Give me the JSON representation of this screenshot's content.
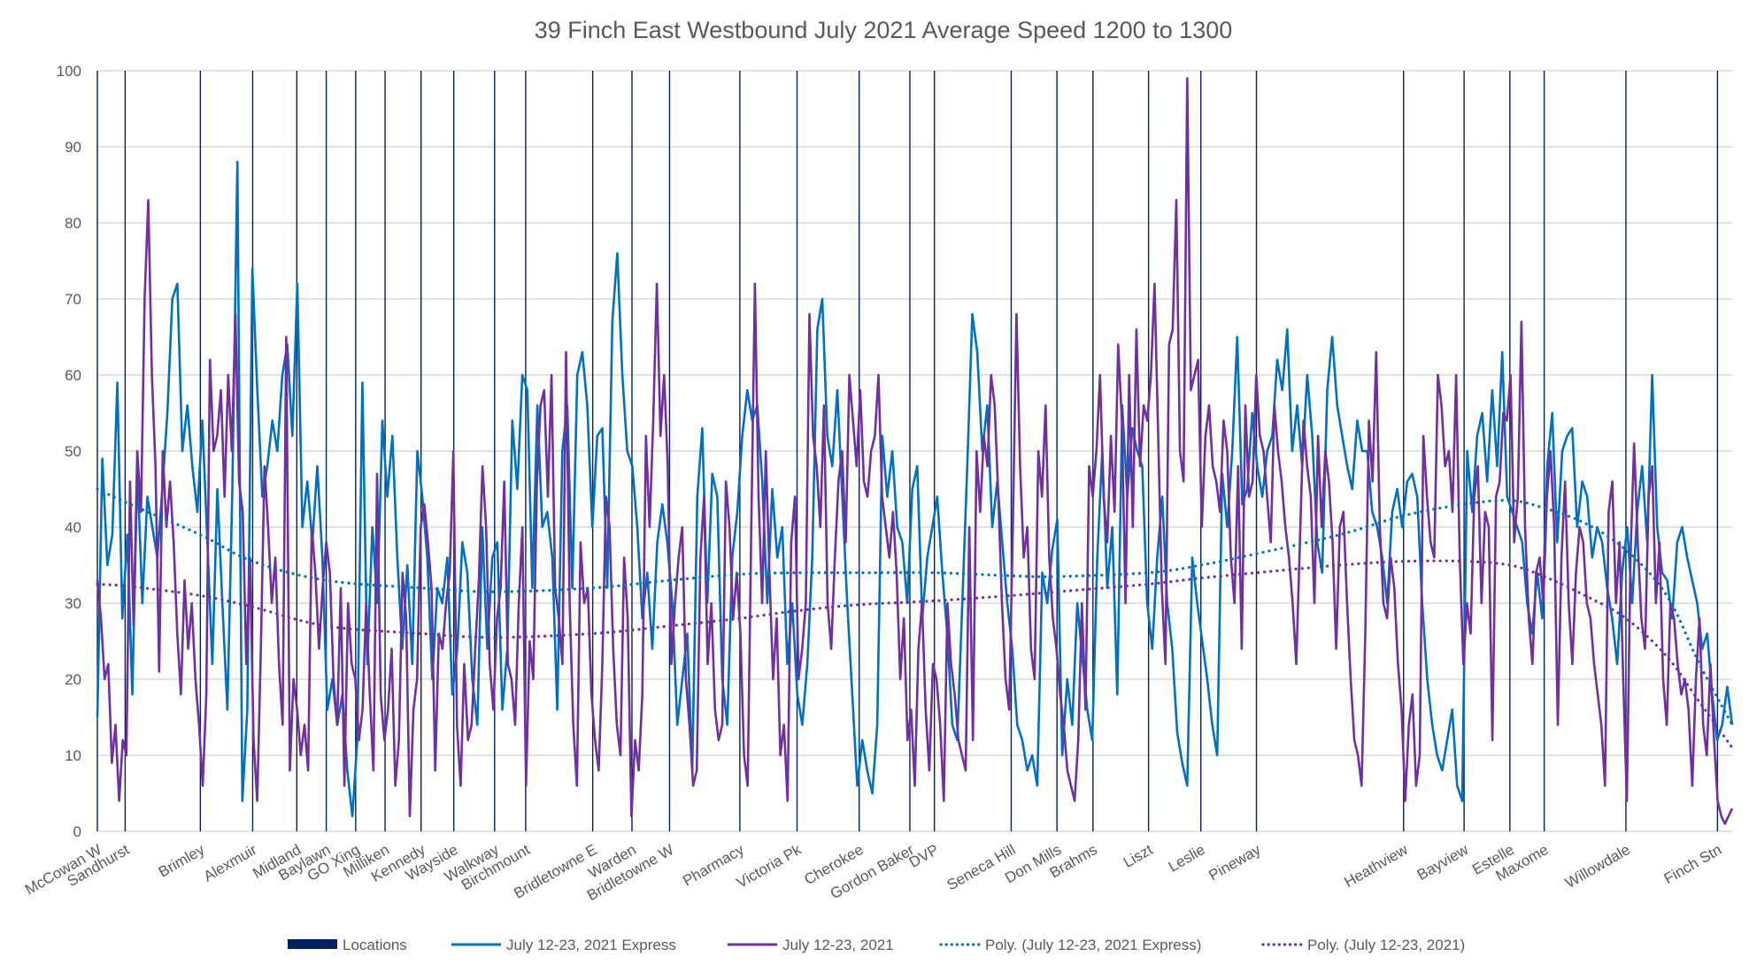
{
  "chart_data": {
    "type": "line",
    "title": "39 Finch East Westbound July 2021 Average Speed 1200 to 1300",
    "xlabel": "",
    "ylabel": "",
    "ylim": [
      0,
      100
    ],
    "xlim": [
      0,
      1000
    ],
    "y_ticks": [
      0,
      10,
      20,
      30,
      40,
      50,
      60,
      70,
      80,
      90,
      100
    ],
    "grid": "horizontal",
    "legend_position": "bottom",
    "locations": [
      {
        "name": "McCowan W",
        "x": 0
      },
      {
        "name": "Sandhurst",
        "x": 17
      },
      {
        "name": "Brimley",
        "x": 63
      },
      {
        "name": "Alexmuir",
        "x": 95
      },
      {
        "name": "Midland",
        "x": 122
      },
      {
        "name": "Baylawn",
        "x": 140
      },
      {
        "name": "GO Xing",
        "x": 158
      },
      {
        "name": "Milliken",
        "x": 176
      },
      {
        "name": "Kennedy",
        "x": 198
      },
      {
        "name": "Wayside",
        "x": 218
      },
      {
        "name": "Walkway",
        "x": 243
      },
      {
        "name": "Birchmount",
        "x": 262
      },
      {
        "name": "Bridletowne E",
        "x": 303
      },
      {
        "name": "Warden",
        "x": 327
      },
      {
        "name": "Bridletowne W",
        "x": 350
      },
      {
        "name": "Pharmacy",
        "x": 393
      },
      {
        "name": "Victoria Pk",
        "x": 428
      },
      {
        "name": "Cherokee",
        "x": 466
      },
      {
        "name": "Gordon Baker",
        "x": 497
      },
      {
        "name": "DVP",
        "x": 512
      },
      {
        "name": "Seneca Hill",
        "x": 559
      },
      {
        "name": "Don Mills",
        "x": 587
      },
      {
        "name": "Brahms",
        "x": 609
      },
      {
        "name": "Liszt",
        "x": 643
      },
      {
        "name": "Leslie",
        "x": 675
      },
      {
        "name": "Pineway",
        "x": 709
      },
      {
        "name": "Heathview",
        "x": 799
      },
      {
        "name": "Bayview",
        "x": 836
      },
      {
        "name": "Estelle",
        "x": 864
      },
      {
        "name": "Maxome",
        "x": 885
      },
      {
        "name": "Willowdale",
        "x": 935
      },
      {
        "name": "Finch Stn",
        "x": 991
      }
    ],
    "series": [
      {
        "name": "Locations",
        "type": "vertical-lines",
        "color": "#002060"
      },
      {
        "name": "July 12-23, 2021 Express",
        "color": "#0070C0",
        "x_start": 0,
        "x_end": 1000,
        "values": [
          15,
          49,
          35,
          39,
          59,
          28,
          39,
          18,
          48,
          30,
          44,
          40,
          36,
          45,
          55,
          70,
          72,
          50,
          56,
          48,
          42,
          54,
          38,
          22,
          45,
          30,
          16,
          45,
          88,
          4,
          16,
          74,
          58,
          44,
          48,
          54,
          50,
          60,
          64,
          52,
          72,
          40,
          46,
          38,
          48,
          36,
          16,
          20,
          14,
          18,
          8,
          2,
          12,
          59,
          22,
          40,
          30,
          54,
          44,
          52,
          36,
          24,
          35,
          22,
          50,
          44,
          36,
          20,
          32,
          30,
          36,
          18,
          24,
          38,
          34,
          20,
          14,
          40,
          24,
          36,
          38,
          16,
          24,
          54,
          45,
          60,
          58,
          32,
          56,
          40,
          42,
          36,
          16,
          50,
          56,
          32,
          60,
          63,
          56,
          40,
          52,
          53,
          32,
          67,
          76,
          60,
          50,
          48,
          40,
          28,
          34,
          24,
          38,
          43,
          38,
          30,
          14,
          20,
          26,
          8,
          44,
          53,
          30,
          47,
          44,
          20,
          14,
          36,
          42,
          52,
          58,
          54,
          56,
          46,
          30,
          45,
          36,
          40,
          22,
          30,
          18,
          14,
          22,
          36,
          66,
          70,
          52,
          48,
          58,
          44,
          30,
          18,
          6,
          12,
          8,
          5,
          14,
          52,
          44,
          50,
          40,
          38,
          30,
          45,
          48,
          28,
          36,
          40,
          44,
          34,
          26,
          14,
          12,
          30,
          48,
          68,
          63,
          50,
          56,
          40,
          46,
          38,
          30,
          24,
          14,
          12,
          8,
          10,
          6,
          34,
          30,
          37,
          41,
          10,
          20,
          14,
          30,
          23,
          16,
          12,
          36,
          50,
          32,
          40,
          18,
          56,
          44,
          53,
          50,
          48,
          30,
          24,
          36,
          44,
          30,
          24,
          13,
          9,
          6,
          36,
          30,
          25,
          20,
          14,
          10,
          47,
          40,
          50,
          65,
          43,
          45,
          55,
          48,
          44,
          50,
          52,
          62,
          58,
          66,
          50,
          56,
          48,
          60,
          52,
          38,
          34,
          58,
          65,
          56,
          52,
          48,
          45,
          54,
          50,
          50,
          42,
          40,
          36,
          30,
          42,
          45,
          40,
          46,
          47,
          44,
          30,
          20,
          14,
          10,
          8,
          12,
          16,
          6,
          4,
          50,
          42,
          52,
          55,
          46,
          58,
          48,
          63,
          44,
          42,
          40,
          38,
          30,
          26,
          34,
          28,
          48,
          55,
          38,
          50,
          52,
          53,
          40,
          46,
          44,
          36,
          40,
          38,
          32,
          28,
          22,
          34,
          40,
          30,
          42,
          48,
          38,
          60,
          40,
          34,
          33,
          28,
          38,
          40,
          36,
          33,
          30,
          24,
          26,
          18,
          12,
          14,
          19,
          14
        ]
      },
      {
        "name": "July 12-23, 2021",
        "color": "#7030A0",
        "x_start": 0,
        "x_end": 1000,
        "values": [
          33,
          28,
          20,
          22,
          9,
          14,
          4,
          12,
          10,
          46,
          27,
          50,
          42,
          70,
          83,
          60,
          48,
          21,
          50,
          40,
          46,
          38,
          26,
          18,
          33,
          24,
          30,
          20,
          14,
          6,
          18,
          62,
          50,
          52,
          58,
          44,
          60,
          50,
          68,
          46,
          42,
          22,
          36,
          12,
          4,
          24,
          48,
          40,
          30,
          36,
          22,
          14,
          65,
          8,
          20,
          16,
          10,
          14,
          8,
          40,
          34,
          24,
          32,
          38,
          34,
          20,
          14,
          32,
          6,
          30,
          22,
          20,
          12,
          16,
          30,
          18,
          8,
          47,
          18,
          12,
          16,
          24,
          6,
          12,
          34,
          28,
          2,
          16,
          20,
          40,
          43,
          38,
          32,
          8,
          26,
          24,
          30,
          34,
          50,
          14,
          6,
          22,
          12,
          14,
          24,
          33,
          48,
          40,
          22,
          16,
          28,
          32,
          46,
          22,
          20,
          14,
          30,
          40,
          6,
          25,
          20,
          46,
          56,
          58,
          44,
          60,
          32,
          28,
          22,
          63,
          30,
          14,
          6,
          38,
          30,
          32,
          18,
          12,
          8,
          22,
          44,
          40,
          24,
          14,
          10,
          36,
          28,
          2,
          12,
          8,
          18,
          52,
          40,
          54,
          72,
          52,
          60,
          48,
          22,
          30,
          36,
          40,
          20,
          14,
          6,
          8,
          36,
          44,
          22,
          30,
          16,
          12,
          14,
          46,
          40,
          28,
          34,
          26,
          10,
          6,
          40,
          72,
          44,
          30,
          50,
          34,
          20,
          28,
          10,
          14,
          4,
          38,
          44,
          20,
          24,
          30,
          68,
          52,
          48,
          40,
          56,
          30,
          24,
          36,
          46,
          50,
          38,
          60,
          54,
          48,
          58,
          46,
          44,
          50,
          52,
          60,
          44,
          40,
          36,
          42,
          34,
          20,
          28,
          12,
          16,
          6,
          24,
          30,
          16,
          8,
          22,
          20,
          14,
          4,
          30,
          22,
          18,
          12,
          10,
          8,
          40,
          12,
          50,
          42,
          52,
          48,
          60,
          56,
          44,
          30,
          20,
          16,
          40,
          68,
          48,
          36,
          40,
          24,
          20,
          50,
          44,
          56,
          36,
          28,
          24,
          18,
          14,
          8,
          6,
          4,
          12,
          30,
          16,
          48,
          44,
          50,
          60,
          44,
          38,
          52,
          42,
          64,
          54,
          30,
          60,
          40,
          66,
          48,
          56,
          54,
          60,
          72,
          52,
          32,
          22,
          64,
          66,
          83,
          50,
          46,
          99,
          58,
          60,
          62,
          40,
          52,
          56,
          48,
          46,
          42,
          54,
          50,
          36,
          30,
          48,
          24,
          56,
          44,
          46,
          60,
          52,
          50,
          44,
          38,
          56,
          50,
          46,
          40,
          36,
          30,
          22,
          38,
          54,
          48,
          44,
          30,
          52,
          40,
          50,
          46,
          38,
          24,
          40,
          42,
          30,
          20,
          12,
          10,
          6,
          26,
          54,
          46,
          63,
          40,
          30,
          28,
          36,
          32,
          22,
          16,
          4,
          14,
          18,
          6,
          10,
          52,
          44,
          38,
          36,
          60,
          56,
          48,
          50,
          42,
          60,
          36,
          22,
          30,
          26,
          44,
          48,
          30,
          42,
          40,
          12,
          44,
          46,
          55,
          54,
          60,
          38,
          44,
          67,
          40,
          28,
          22,
          34,
          36,
          30,
          44,
          50,
          40,
          14,
          36,
          46,
          30,
          22,
          34,
          40,
          38,
          30,
          28,
          22,
          18,
          14,
          6,
          42,
          46,
          30,
          38,
          20,
          4,
          36,
          51,
          38,
          28,
          24,
          44,
          48,
          30,
          38,
          20,
          14,
          30,
          28,
          22,
          18,
          20,
          16,
          6,
          20,
          28,
          14,
          10,
          22,
          12,
          4,
          2,
          1,
          2,
          3
        ]
      },
      {
        "name": "Poly. (July 12-23, 2021 Express)",
        "color": "#0070C0",
        "style": "dotted",
        "points": [
          [
            0,
            45
          ],
          [
            20,
            43
          ],
          [
            63,
            39
          ],
          [
            95,
            35.5
          ],
          [
            140,
            33
          ],
          [
            198,
            32
          ],
          [
            243,
            31.5
          ],
          [
            303,
            32
          ],
          [
            350,
            33
          ],
          [
            393,
            33.8
          ],
          [
            428,
            34
          ],
          [
            466,
            34
          ],
          [
            512,
            34
          ],
          [
            559,
            33.6
          ],
          [
            587,
            33.5
          ],
          [
            643,
            34
          ],
          [
            675,
            35
          ],
          [
            709,
            36.5
          ],
          [
            760,
            39
          ],
          [
            799,
            41.5
          ],
          [
            836,
            43
          ],
          [
            864,
            43.5
          ],
          [
            885,
            42.5
          ],
          [
            910,
            40.5
          ],
          [
            935,
            37
          ],
          [
            960,
            31
          ],
          [
            980,
            22
          ],
          [
            1000,
            14
          ]
        ]
      },
      {
        "name": "Poly. (July 12-23, 2021)",
        "color": "#7030A0",
        "style": "dotted",
        "points": [
          [
            0,
            32.5
          ],
          [
            20,
            32.2
          ],
          [
            63,
            31
          ],
          [
            95,
            29.5
          ],
          [
            140,
            27
          ],
          [
            198,
            26
          ],
          [
            243,
            25.5
          ],
          [
            303,
            26
          ],
          [
            350,
            27
          ],
          [
            393,
            28
          ],
          [
            428,
            29
          ],
          [
            466,
            29.8
          ],
          [
            512,
            30.3
          ],
          [
            559,
            31
          ],
          [
            587,
            31.5
          ],
          [
            643,
            32.5
          ],
          [
            675,
            33.3
          ],
          [
            709,
            34
          ],
          [
            760,
            35
          ],
          [
            799,
            35.5
          ],
          [
            836,
            35.5
          ],
          [
            864,
            35
          ],
          [
            885,
            33.5
          ],
          [
            910,
            31
          ],
          [
            935,
            28
          ],
          [
            960,
            23
          ],
          [
            980,
            17
          ],
          [
            1000,
            11
          ]
        ]
      }
    ],
    "legend": [
      {
        "label": "Locations",
        "marker": "bar",
        "color": "#002060"
      },
      {
        "label": "July 12-23, 2021 Express",
        "marker": "line",
        "color": "#0070C0"
      },
      {
        "label": "July 12-23, 2021",
        "marker": "line",
        "color": "#7030A0"
      },
      {
        "label": "Poly. (July 12-23, 2021 Express)",
        "marker": "dotted",
        "color": "#0070C0"
      },
      {
        "label": "Poly. (July 12-23, 2021)",
        "marker": "dotted",
        "color": "#7030A0"
      }
    ]
  }
}
